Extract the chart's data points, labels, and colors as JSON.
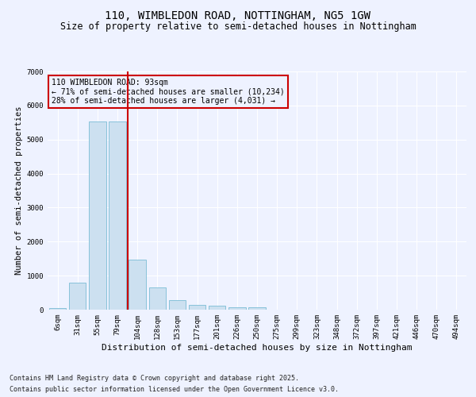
{
  "title": "110, WIMBLEDON ROAD, NOTTINGHAM, NG5 1GW",
  "subtitle": "Size of property relative to semi-detached houses in Nottingham",
  "xlabel": "Distribution of semi-detached houses by size in Nottingham",
  "ylabel": "Number of semi-detached properties",
  "categories": [
    "6sqm",
    "31sqm",
    "55sqm",
    "79sqm",
    "104sqm",
    "128sqm",
    "153sqm",
    "177sqm",
    "201sqm",
    "226sqm",
    "250sqm",
    "275sqm",
    "299sqm",
    "323sqm",
    "348sqm",
    "372sqm",
    "397sqm",
    "421sqm",
    "446sqm",
    "470sqm",
    "494sqm"
  ],
  "values": [
    50,
    790,
    5530,
    5530,
    1480,
    650,
    290,
    150,
    110,
    70,
    60,
    0,
    0,
    0,
    0,
    0,
    0,
    0,
    0,
    0,
    0
  ],
  "bar_color": "#cce0f0",
  "bar_edge_color": "#7bbcd5",
  "vline_color": "#cc0000",
  "vline_x_index": 3,
  "annotation_title": "110 WIMBLEDON ROAD: 93sqm",
  "annotation_line1": "← 71% of semi-detached houses are smaller (10,234)",
  "annotation_line2": "28% of semi-detached houses are larger (4,031) →",
  "annotation_box_color": "#cc0000",
  "ylim": [
    0,
    7000
  ],
  "yticks": [
    0,
    1000,
    2000,
    3000,
    4000,
    5000,
    6000,
    7000
  ],
  "footnote1": "Contains HM Land Registry data © Crown copyright and database right 2025.",
  "footnote2": "Contains public sector information licensed under the Open Government Licence v3.0.",
  "bg_color": "#eef2ff",
  "title_fontsize": 10,
  "subtitle_fontsize": 8.5,
  "xlabel_fontsize": 8,
  "ylabel_fontsize": 7.5,
  "tick_fontsize": 6.5,
  "annot_fontsize": 7,
  "footnote_fontsize": 6
}
